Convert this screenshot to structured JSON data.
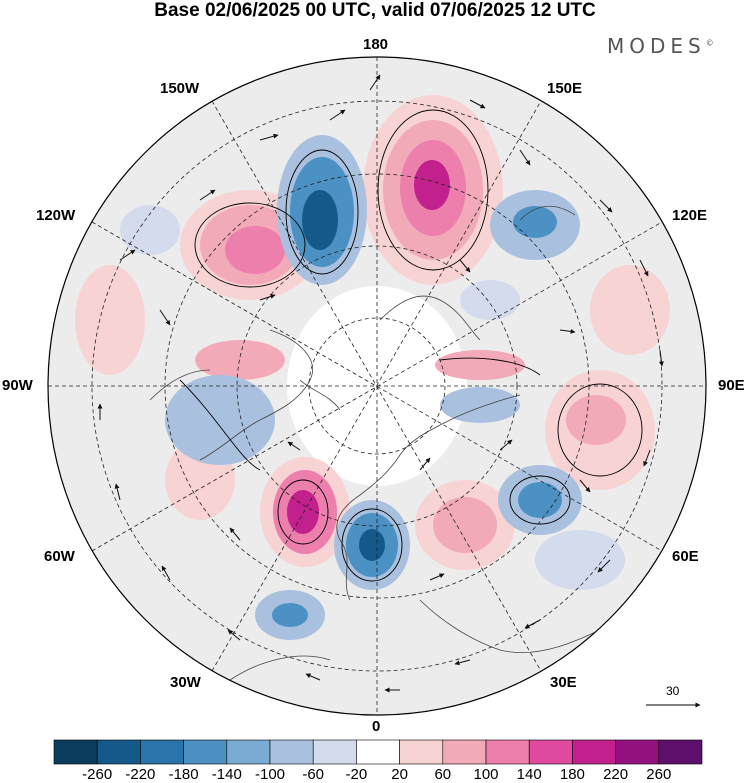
{
  "title": "Base 02/06/2025 00 UTC, valid 07/06/2025 12 UTC",
  "brand": "MODES",
  "brand_mark": "©",
  "longitude_labels": {
    "top": "180",
    "top_left": "150W",
    "top_right": "150E",
    "left_upper": "120W",
    "right_upper": "120E",
    "left_mid": "90W",
    "right_mid": "90E",
    "left_lower": "60W",
    "right_lower": "60E",
    "bottom_left": "30W",
    "bottom_right": "30E",
    "bottom": "0"
  },
  "wind_scale": {
    "value": "30"
  },
  "colorbar": {
    "ticks": [
      "-260",
      "-220",
      "-180",
      "-140",
      "-100",
      "-60",
      "-20",
      "20",
      "60",
      "100",
      "140",
      "180",
      "220",
      "260"
    ],
    "colors": [
      "#0b3d5e",
      "#15598a",
      "#2a74ab",
      "#4c91c4",
      "#7aabd3",
      "#a9c1de",
      "#d4dbec",
      "#ffffff",
      "#f7d3d3",
      "#f2aab8",
      "#ec7fac",
      "#e04a9e",
      "#c2208c",
      "#92117e",
      "#5e0f6c"
    ]
  },
  "map_style": {
    "background": "#ececec",
    "border": "#000000",
    "graticule": "#222222"
  }
}
